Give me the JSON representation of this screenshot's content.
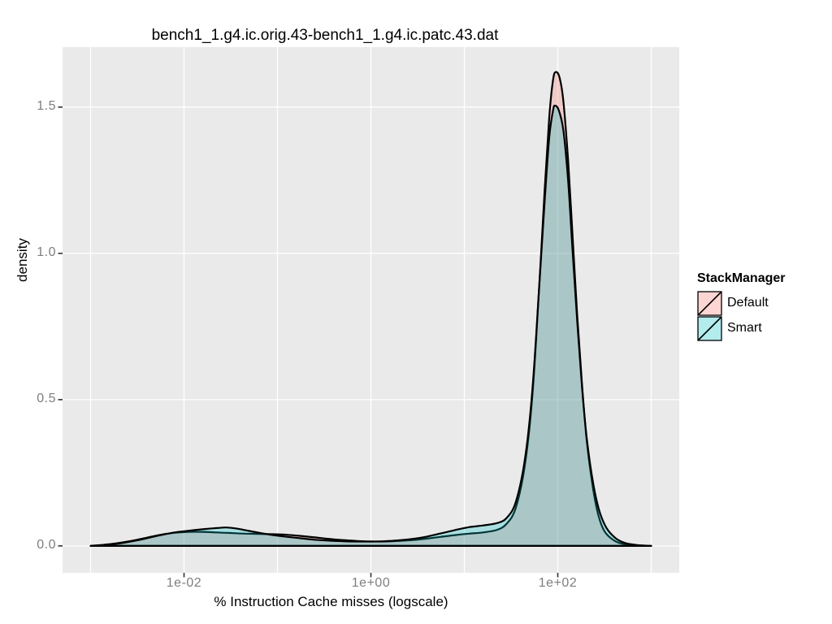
{
  "title": "bench1_1.g4.ic.orig.43-bench1_1.g4.ic.patc.43.dat",
  "axes": {
    "x": {
      "label": "% Instruction Cache misses (logscale)",
      "scale": "log10",
      "ticks": [
        {
          "label": "1e-02",
          "log10": -2
        },
        {
          "label": "1e+00",
          "log10": 0
        },
        {
          "label": "1e+02",
          "log10": 2
        }
      ]
    },
    "y": {
      "label": "density",
      "ticks": [
        {
          "label": "0.0",
          "value": 0.0
        },
        {
          "label": "0.5",
          "value": 0.5
        },
        {
          "label": "1.0",
          "value": 1.0
        },
        {
          "label": "1.5",
          "value": 1.5
        }
      ]
    }
  },
  "legend": {
    "title": "StackManager",
    "position": "right",
    "entries": [
      {
        "label": "Default",
        "color": "#F8766D"
      },
      {
        "label": "Smart",
        "color": "#00BFC4"
      }
    ]
  },
  "style": {
    "panel_bg": "#EAEAEA",
    "grid_color": "#FFFFFF",
    "outline_color": "#000000",
    "tick_mark_color": "#333333",
    "tick_text_color": "#7E7E7E",
    "fill_opacity": 0.28,
    "outline_width": 2.2
  },
  "chart_data": {
    "type": "area",
    "subtype": "density",
    "title": "bench1_1.g4.ic.orig.43-bench1_1.g4.ic.patc.43.dat",
    "xlabel": "% Instruction Cache misses (logscale)",
    "ylabel": "density",
    "x_scale": "log10",
    "x_range_log10": [
      -3.3,
      3.3
    ],
    "y_range": [
      -0.092,
      1.705
    ],
    "x_gridlines_log10": [
      -3,
      -2,
      -1,
      0,
      1,
      2,
      3
    ],
    "y_gridlines": [
      0.0,
      0.5,
      1.0,
      1.5
    ],
    "grid": true,
    "legend_position": "right",
    "series": [
      {
        "name": "Default",
        "color": "#F8766D",
        "points_log10x_density": [
          [
            -3.0,
            0
          ],
          [
            -2.85,
            0.004
          ],
          [
            -2.7,
            0.01
          ],
          [
            -2.55,
            0.018
          ],
          [
            -2.4,
            0.028
          ],
          [
            -2.25,
            0.038
          ],
          [
            -2.1,
            0.045
          ],
          [
            -1.95,
            0.048
          ],
          [
            -1.8,
            0.048
          ],
          [
            -1.65,
            0.046
          ],
          [
            -1.5,
            0.044
          ],
          [
            -1.35,
            0.042
          ],
          [
            -1.2,
            0.041
          ],
          [
            -1.05,
            0.04
          ],
          [
            -0.9,
            0.038
          ],
          [
            -0.75,
            0.034
          ],
          [
            -0.6,
            0.029
          ],
          [
            -0.45,
            0.024
          ],
          [
            -0.3,
            0.02
          ],
          [
            -0.15,
            0.017
          ],
          [
            0,
            0.015
          ],
          [
            0.15,
            0.015
          ],
          [
            0.3,
            0.017
          ],
          [
            0.45,
            0.02
          ],
          [
            0.6,
            0.025
          ],
          [
            0.75,
            0.031
          ],
          [
            0.9,
            0.037
          ],
          [
            1.05,
            0.042
          ],
          [
            1.2,
            0.046
          ],
          [
            1.35,
            0.055
          ],
          [
            1.45,
            0.075
          ],
          [
            1.55,
            0.13
          ],
          [
            1.65,
            0.28
          ],
          [
            1.73,
            0.52
          ],
          [
            1.8,
            0.88
          ],
          [
            1.86,
            1.22
          ],
          [
            1.91,
            1.47
          ],
          [
            1.95,
            1.595
          ],
          [
            1.98,
            1.62
          ],
          [
            2.02,
            1.6
          ],
          [
            2.06,
            1.52
          ],
          [
            2.11,
            1.32
          ],
          [
            2.16,
            1.05
          ],
          [
            2.21,
            0.78
          ],
          [
            2.26,
            0.55
          ],
          [
            2.31,
            0.36
          ],
          [
            2.37,
            0.21
          ],
          [
            2.43,
            0.11
          ],
          [
            2.5,
            0.05
          ],
          [
            2.6,
            0.019
          ],
          [
            2.7,
            0.007
          ],
          [
            2.85,
            0.002
          ],
          [
            3.0,
            0
          ]
        ]
      },
      {
        "name": "Smart",
        "color": "#00BFC4",
        "points_log10x_density": [
          [
            -3.0,
            0
          ],
          [
            -2.85,
            0.003
          ],
          [
            -2.7,
            0.008
          ],
          [
            -2.55,
            0.016
          ],
          [
            -2.4,
            0.026
          ],
          [
            -2.25,
            0.037
          ],
          [
            -2.1,
            0.046
          ],
          [
            -1.95,
            0.052
          ],
          [
            -1.8,
            0.057
          ],
          [
            -1.65,
            0.061
          ],
          [
            -1.55,
            0.063
          ],
          [
            -1.45,
            0.06
          ],
          [
            -1.35,
            0.054
          ],
          [
            -1.2,
            0.045
          ],
          [
            -1.05,
            0.037
          ],
          [
            -0.9,
            0.031
          ],
          [
            -0.75,
            0.026
          ],
          [
            -0.6,
            0.021
          ],
          [
            -0.45,
            0.018
          ],
          [
            -0.3,
            0.016
          ],
          [
            -0.15,
            0.015
          ],
          [
            0,
            0.015
          ],
          [
            0.15,
            0.016
          ],
          [
            0.3,
            0.019
          ],
          [
            0.45,
            0.024
          ],
          [
            0.6,
            0.032
          ],
          [
            0.75,
            0.043
          ],
          [
            0.9,
            0.054
          ],
          [
            1.05,
            0.064
          ],
          [
            1.2,
            0.07
          ],
          [
            1.35,
            0.078
          ],
          [
            1.45,
            0.095
          ],
          [
            1.55,
            0.15
          ],
          [
            1.65,
            0.3
          ],
          [
            1.73,
            0.54
          ],
          [
            1.8,
            0.88
          ],
          [
            1.86,
            1.18
          ],
          [
            1.91,
            1.4
          ],
          [
            1.95,
            1.49
          ],
          [
            1.97,
            1.505
          ],
          [
            2.01,
            1.49
          ],
          [
            2.06,
            1.42
          ],
          [
            2.11,
            1.25
          ],
          [
            2.16,
            1.0
          ],
          [
            2.21,
            0.76
          ],
          [
            2.26,
            0.54
          ],
          [
            2.31,
            0.37
          ],
          [
            2.37,
            0.23
          ],
          [
            2.44,
            0.125
          ],
          [
            2.52,
            0.062
          ],
          [
            2.62,
            0.026
          ],
          [
            2.72,
            0.01
          ],
          [
            2.85,
            0.003
          ],
          [
            3.0,
            0
          ]
        ]
      }
    ]
  }
}
